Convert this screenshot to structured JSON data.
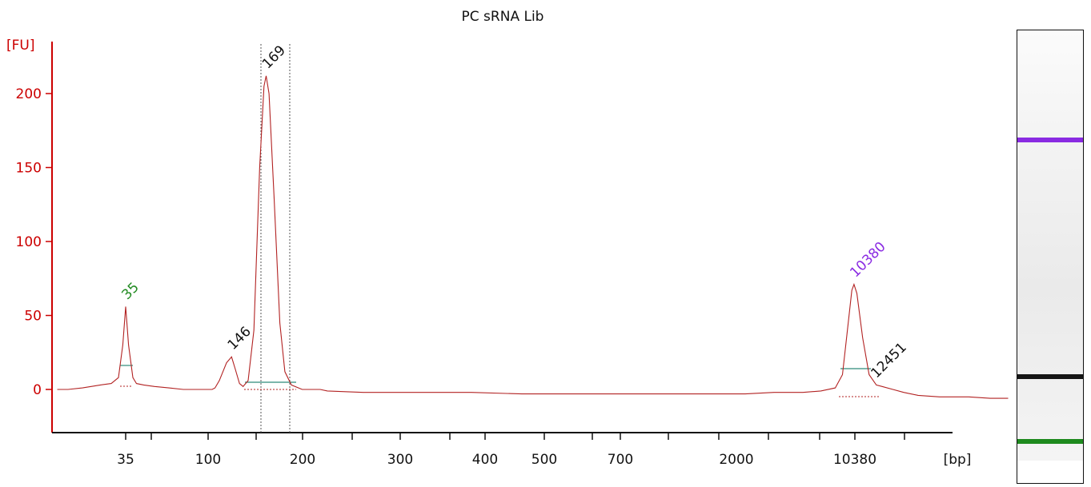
{
  "chart_data": {
    "type": "line",
    "title": "PC sRNA Lib",
    "ylabel": "[FU]",
    "xlabel": "[bp]",
    "ylim": [
      -28,
      235
    ],
    "y_ticks": [
      0,
      50,
      100,
      150,
      200
    ],
    "x_tick_labels": [
      "35",
      "100",
      "200",
      "300",
      "400",
      "500",
      "700",
      "2000",
      "10380"
    ],
    "grid": false,
    "series": [
      {
        "color": "#b22222",
        "points": [
          [
            -9.5,
            0
          ],
          [
            -8.0,
            0
          ],
          [
            -6.0,
            1
          ],
          [
            -3.5,
            3
          ],
          [
            -2.0,
            4
          ],
          [
            -1.0,
            8
          ],
          [
            -0.4,
            30
          ],
          [
            0,
            56
          ],
          [
            0.4,
            30
          ],
          [
            1.0,
            8
          ],
          [
            1.5,
            4
          ],
          [
            2.5,
            3
          ],
          [
            4,
            2
          ],
          [
            6,
            1
          ],
          [
            8,
            0
          ],
          [
            10,
            0
          ],
          [
            12,
            0
          ],
          [
            12.4,
            1
          ],
          [
            13.0,
            6
          ],
          [
            14.0,
            18
          ],
          [
            14.7,
            22
          ],
          [
            15.2,
            14
          ],
          [
            15.8,
            4
          ],
          [
            16.3,
            2
          ],
          [
            17.0,
            6
          ],
          [
            17.8,
            40
          ],
          [
            18.6,
            150
          ],
          [
            19.2,
            205
          ],
          [
            19.5,
            212
          ],
          [
            19.9,
            200
          ],
          [
            20.6,
            130
          ],
          [
            21.4,
            45
          ],
          [
            22.1,
            12
          ],
          [
            23,
            3
          ],
          [
            24.5,
            0
          ],
          [
            27,
            0
          ],
          [
            28,
            -1
          ],
          [
            33,
            -2
          ],
          [
            37,
            -2
          ],
          [
            42,
            -2
          ],
          [
            48,
            -2
          ],
          [
            55,
            -3
          ],
          [
            62,
            -3
          ],
          [
            68,
            -3
          ],
          [
            74,
            -3
          ],
          [
            80,
            -3
          ],
          [
            86,
            -3
          ],
          [
            90,
            -2
          ],
          [
            94,
            -2
          ],
          [
            96.5,
            -1
          ],
          [
            98.5,
            1
          ],
          [
            99.5,
            10
          ],
          [
            100.3,
            45
          ],
          [
            100.8,
            67
          ],
          [
            101.1,
            71
          ],
          [
            101.5,
            65
          ],
          [
            102.3,
            35
          ],
          [
            103.2,
            10
          ],
          [
            104.2,
            3
          ],
          [
            105,
            2
          ],
          [
            106.5,
            0
          ],
          [
            108,
            -2
          ],
          [
            110,
            -4
          ],
          [
            113,
            -5
          ],
          [
            117,
            -5
          ],
          [
            120,
            -6
          ],
          [
            122.5,
            -6
          ]
        ]
      }
    ],
    "peaks": [
      {
        "label": "35",
        "x": 0,
        "y": 56,
        "color": "#228b22"
      },
      {
        "label": "146",
        "x": 14.7,
        "y": 22,
        "color": "#111111"
      },
      {
        "label": "169",
        "x": 19.5,
        "y": 212,
        "color": "#111111"
      },
      {
        "label": "10380",
        "x": 101.1,
        "y": 71,
        "color": "#8a2be2"
      },
      {
        "label": "12451",
        "x": 104.0,
        "y": 3,
        "color": "#111111"
      }
    ],
    "gel_bands": [
      {
        "color": "#8a2be2",
        "position": 0.25
      },
      {
        "color": "#151515",
        "position": 0.8
      },
      {
        "color": "#1e8a1e",
        "position": 0.95
      }
    ]
  }
}
